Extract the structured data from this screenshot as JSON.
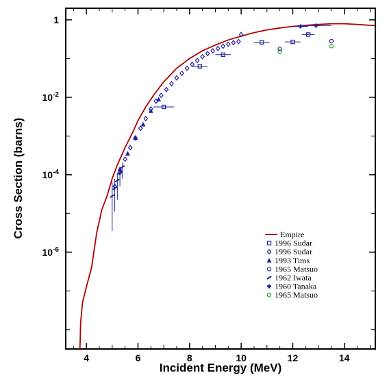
{
  "chart_data": {
    "type": "scatter",
    "title": "",
    "xlabel": "Incident Energy (MeV)",
    "ylabel": "Cross Section (barns)",
    "xlim": [
      3.2,
      15.2
    ],
    "ylim_log10": [
      -8.5,
      0.3
    ],
    "y_scale": "log",
    "x_ticks": [
      4,
      6,
      8,
      10,
      12,
      14
    ],
    "y_ticks": [
      {
        "exp": 0,
        "base": "1",
        "sup": ""
      },
      {
        "exp": -2,
        "base": "10",
        "sup": "-2"
      },
      {
        "exp": -4,
        "base": "10",
        "sup": "-4"
      },
      {
        "exp": -6,
        "base": "10",
        "sup": "-6"
      }
    ],
    "grid": false,
    "legend_position": "bottom-right",
    "series": [
      {
        "name": "Empire",
        "kind": "line",
        "color": "#b00000",
        "points": [
          [
            3.75,
            -8.5
          ],
          [
            3.78,
            -7.8
          ],
          [
            3.85,
            -7.3
          ],
          [
            4.0,
            -6.9
          ],
          [
            4.2,
            -6.4
          ],
          [
            4.4,
            -5.5
          ],
          [
            4.6,
            -4.9
          ],
          [
            4.8,
            -4.55
          ],
          [
            5.0,
            -4.1
          ],
          [
            5.2,
            -3.75
          ],
          [
            5.5,
            -3.3
          ],
          [
            5.8,
            -2.9
          ],
          [
            6.0,
            -2.6
          ],
          [
            6.3,
            -2.25
          ],
          [
            6.6,
            -1.95
          ],
          [
            7.0,
            -1.6
          ],
          [
            7.5,
            -1.25
          ],
          [
            8.0,
            -1.0
          ],
          [
            8.5,
            -0.8
          ],
          [
            9.0,
            -0.65
          ],
          [
            9.5,
            -0.52
          ],
          [
            10.0,
            -0.42
          ],
          [
            10.5,
            -0.33
          ],
          [
            11.0,
            -0.26
          ],
          [
            11.5,
            -0.21
          ],
          [
            12.0,
            -0.17
          ],
          [
            12.5,
            -0.14
          ],
          [
            13.0,
            -0.12
          ],
          [
            13.5,
            -0.1
          ],
          [
            14.0,
            -0.1
          ],
          [
            14.5,
            -0.12
          ],
          [
            15.2,
            -0.15
          ]
        ]
      },
      {
        "name": "1996 Sudar",
        "kind": "points",
        "marker": "square",
        "color": "#2020a0",
        "points": [
          [
            7.0,
            -2.25
          ],
          [
            8.4,
            -1.2
          ],
          [
            9.3,
            -0.9
          ],
          [
            10.8,
            -0.58
          ],
          [
            12.0,
            -0.57
          ],
          [
            12.6,
            -0.38
          ]
        ],
        "xerr": [
          0.4,
          0.3,
          0.3,
          0.3,
          0.3,
          0.25
        ]
      },
      {
        "name": "1996 Sudar",
        "kind": "points",
        "marker": "diamond",
        "color": "#2020a0",
        "points": [
          [
            5.1,
            -4.3
          ],
          [
            5.3,
            -3.95
          ],
          [
            5.5,
            -3.6
          ],
          [
            5.7,
            -3.3
          ],
          [
            5.9,
            -3.05
          ],
          [
            6.1,
            -2.8
          ],
          [
            6.3,
            -2.55
          ],
          [
            6.5,
            -2.3
          ],
          [
            6.7,
            -2.1
          ],
          [
            6.9,
            -1.95
          ],
          [
            7.1,
            -1.8
          ],
          [
            7.3,
            -1.65
          ],
          [
            7.5,
            -1.5
          ],
          [
            7.7,
            -1.38
          ],
          [
            7.9,
            -1.25
          ],
          [
            8.1,
            -1.15
          ],
          [
            8.3,
            -1.05
          ],
          [
            8.5,
            -0.95
          ],
          [
            8.7,
            -0.87
          ],
          [
            8.9,
            -0.8
          ],
          [
            9.1,
            -0.74
          ],
          [
            9.3,
            -0.68
          ],
          [
            9.5,
            -0.63
          ],
          [
            9.7,
            -0.59
          ],
          [
            9.9,
            -0.56
          ],
          [
            10.0,
            -0.38
          ]
        ]
      },
      {
        "name": "1993 Tims",
        "kind": "points",
        "marker": "triangle",
        "color": "#2020a0",
        "points": [
          [
            5.3,
            -3.85
          ],
          [
            5.6,
            -3.45
          ],
          [
            5.9,
            -3.05
          ],
          [
            6.2,
            -2.7
          ],
          [
            6.5,
            -2.35
          ],
          [
            6.8,
            -2.05
          ]
        ]
      },
      {
        "name": "1965 Matsuo",
        "kind": "points",
        "marker": "circle",
        "color": "#2020a0",
        "points": [
          [
            11.5,
            -0.75
          ],
          [
            13.5,
            -0.55
          ]
        ]
      },
      {
        "name": "1962 Iwata",
        "kind": "points",
        "marker": "slash",
        "color": "#2020a0",
        "points": [
          [
            5.0,
            -4.55
          ],
          [
            5.1,
            -4.35
          ],
          [
            5.2,
            -4.15
          ],
          [
            5.3,
            -3.95
          ],
          [
            5.4,
            -3.8
          ]
        ],
        "yerr": [
          0.9,
          0.6,
          0.5,
          0.35,
          0.3
        ]
      },
      {
        "name": "1960 Tanaka",
        "kind": "points",
        "marker": "cross",
        "color": "#2020a0",
        "points": [
          [
            12.3,
            -0.17
          ],
          [
            12.9,
            -0.15
          ]
        ],
        "xerr": [
          0.3,
          0.6
        ]
      },
      {
        "name": "1965 Matsuo",
        "kind": "points",
        "marker": "circle",
        "color": "#20a020",
        "points": [
          [
            11.5,
            -0.82
          ],
          [
            13.5,
            -0.68
          ]
        ]
      }
    ]
  }
}
